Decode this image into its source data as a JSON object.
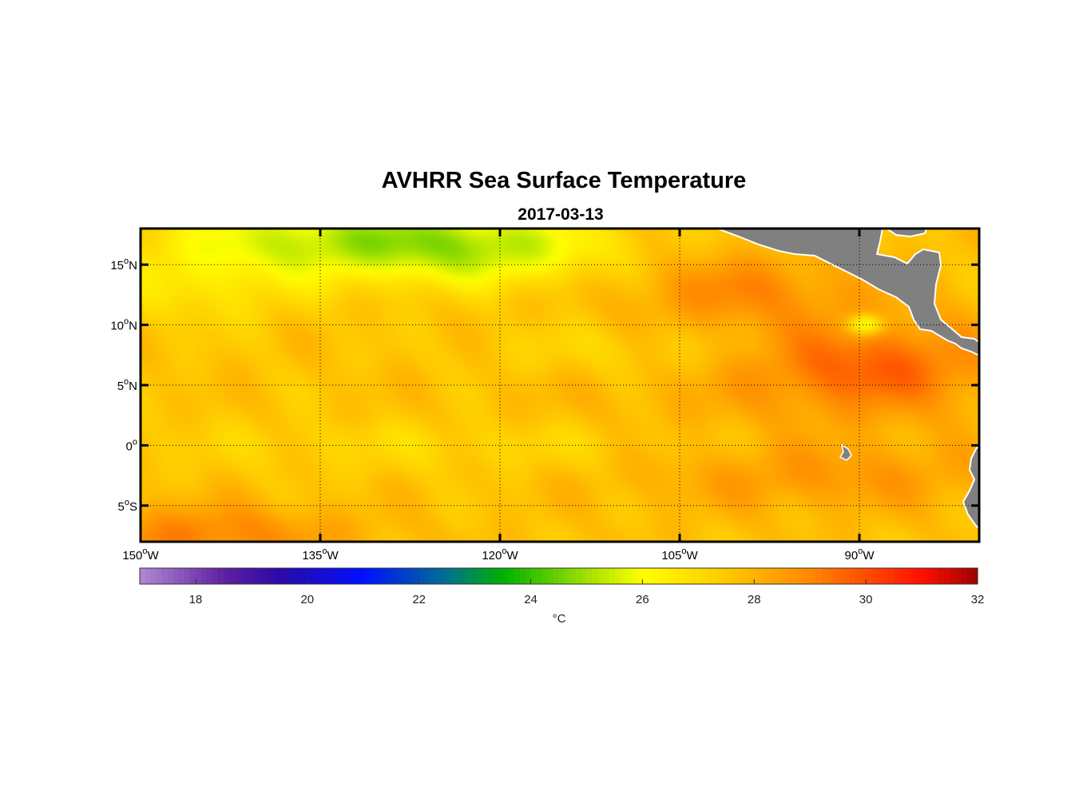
{
  "chart_data": {
    "type": "heatmap",
    "title": "AVHRR Sea Surface Temperature",
    "subtitle": "2017-03-13",
    "variable": "sea surface temperature",
    "units": "°C",
    "lon_range": [
      -150,
      -80
    ],
    "lat_range": [
      -8,
      18
    ],
    "x_ticks": [
      {
        "value": -150,
        "deg": "150",
        "hemi": "W"
      },
      {
        "value": -135,
        "deg": "135",
        "hemi": "W"
      },
      {
        "value": -120,
        "deg": "120",
        "hemi": "W"
      },
      {
        "value": -105,
        "deg": "105",
        "hemi": "W"
      },
      {
        "value": -90,
        "deg": "90",
        "hemi": "W"
      }
    ],
    "y_ticks": [
      {
        "value": 15,
        "deg": "15",
        "hemi": "N"
      },
      {
        "value": 10,
        "deg": "10",
        "hemi": "N"
      },
      {
        "value": 5,
        "deg": "5",
        "hemi": "N"
      },
      {
        "value": 0,
        "deg": "0",
        "hemi": ""
      },
      {
        "value": -5,
        "deg": "5",
        "hemi": "S"
      }
    ],
    "grid": true,
    "grid_style": "dotted",
    "colorbar": {
      "orientation": "horizontal",
      "placement": "bottom",
      "range": [
        17,
        32
      ],
      "ticks": [
        18,
        20,
        22,
        24,
        26,
        28,
        30,
        32
      ],
      "label": "°C"
    },
    "colormap": [
      {
        "value": 17,
        "color": "#b08ad0"
      },
      {
        "value": 18.5,
        "color": "#6020a0"
      },
      {
        "value": 19.5,
        "color": "#2a0aa8"
      },
      {
        "value": 21,
        "color": "#0010ff"
      },
      {
        "value": 22.5,
        "color": "#007090"
      },
      {
        "value": 23.5,
        "color": "#00b000"
      },
      {
        "value": 25,
        "color": "#a0e000"
      },
      {
        "value": 26,
        "color": "#ffff00"
      },
      {
        "value": 27.5,
        "color": "#ffc800"
      },
      {
        "value": 29,
        "color": "#ff8800"
      },
      {
        "value": 31,
        "color": "#ff1000"
      },
      {
        "value": 32,
        "color": "#a00000"
      }
    ],
    "land_color": "#808080"
  }
}
